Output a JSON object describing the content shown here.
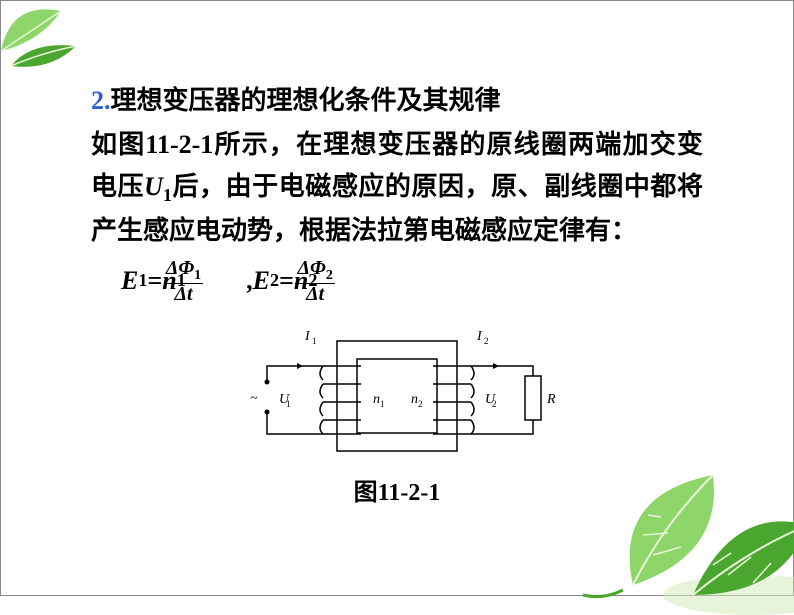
{
  "heading": {
    "number": "2.",
    "text": "理想变压器的理想化条件及其规律"
  },
  "paragraph": {
    "line1_prefix": "如图",
    "fig_ref": "11-2-1",
    "line1_suffix": "所示，在理想变压器的原线圈两端加交变电压",
    "u1": "U",
    "u1_sub": "1",
    "line2": "后，由于电磁感应的原因，原、副线圈中都将产生感应电动势，根据法拉第电磁感应定律有："
  },
  "formula": {
    "e1": "E",
    "e1_sub": "1",
    "eq": "=",
    "n1": "n",
    "n1_sub": "1",
    "frac1_top": "ΔΦ",
    "frac1_sub": "1",
    "frac1_bot": "Δt",
    "comma": ",",
    "e2": "E",
    "e2_sub": "2",
    "n2": "n",
    "n2_sub": "2",
    "frac2_top": "ΔΦ",
    "frac2_sub": "2",
    "frac2_bot": "Δt"
  },
  "diagram": {
    "I1": "I",
    "I1_sub": "1",
    "I2": "I",
    "I2_sub": "2",
    "U1": "U",
    "U1_sub": "1",
    "U2": "U",
    "U2_sub": "2",
    "n1": "n",
    "n1_sub": "1",
    "n2": "n",
    "n2_sub": "2",
    "R": "R",
    "tilde": "~",
    "stroke": "#000000",
    "stroke_width": 1.5,
    "font_family": "Times New Roman",
    "font_size": 14
  },
  "caption": {
    "prefix": "图",
    "num": "11-2-1"
  },
  "leaves": {
    "fill_light": "#8fd66a",
    "fill_dark": "#4aa62f",
    "vein": "#e6f6d7"
  }
}
